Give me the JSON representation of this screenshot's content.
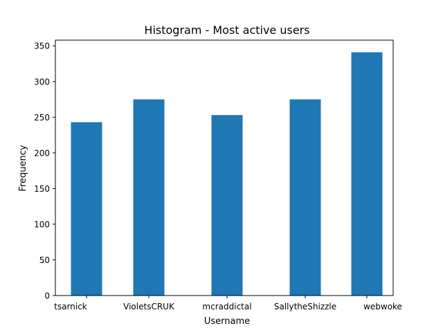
{
  "chart_data": {
    "type": "bar",
    "title": "Histogram - Most active users",
    "xlabel": "Username",
    "ylabel": "Frequency",
    "x_tick_labels": [
      "tsarnick",
      "VioletsCRUK",
      "mcraddictal",
      "SallytheShizzle",
      "webwoke"
    ],
    "bars": [
      {
        "category": "tsarnick",
        "value": 243
      },
      {
        "category": "VioletsCRUK",
        "value": 275
      },
      {
        "category": "mcraddictal",
        "value": 253
      },
      {
        "category": "SallytheShizzle",
        "value": 275
      },
      {
        "category": "webwoke",
        "value": 341
      }
    ],
    "ylim": [
      0,
      358
    ],
    "yticks": [
      0,
      50,
      100,
      150,
      200,
      250,
      300,
      350
    ],
    "bar_color": "#1f77b4",
    "grid": false,
    "legend": false
  }
}
